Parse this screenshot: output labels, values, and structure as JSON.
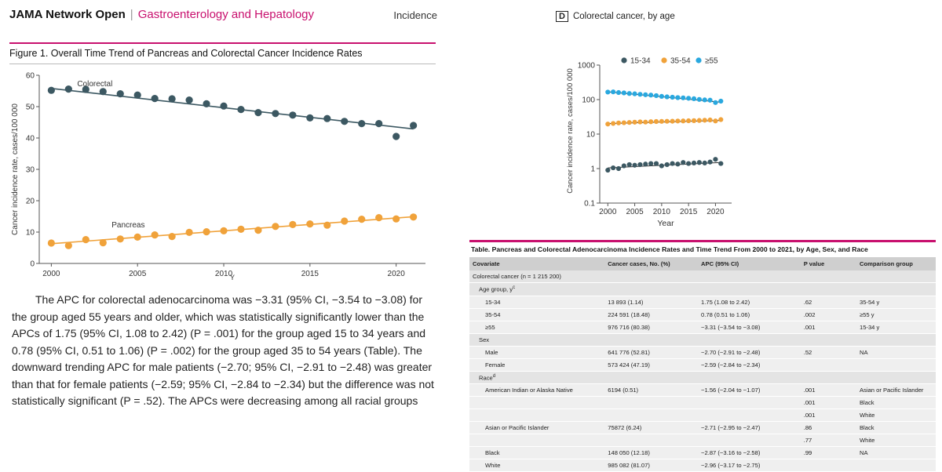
{
  "header": {
    "journal": "JAMA Network Open",
    "separator": "|",
    "section": "Gastroenterology and Hepatology",
    "right_label": "Incidence"
  },
  "figure": {
    "title": "Figure 1. Overall Time Trend of Pancreas and Colorectal Cancer Incidence Rates",
    "panel_letter": "D",
    "panel_title": "Colorectal cancer, by age"
  },
  "body_text": "The APC for colorectal adenocarcinoma was −3.31 (95% CI, −3.54 to −3.08) for the group aged 55 years and older, which was statistically significantly lower than the APCs of 1.75 (95% CI, 1.08 to 2.42) (P = .001) for the group aged 15 to 34 years and 0.78 (95% CI, 0.51 to 1.06) (P = .002) for the group aged 35 to 54 years (Table). The downward trending APC for male patients (−2.70; 95% CI, −2.91 to −2.48) was greater than that for female patients (−2.59; 95% CI, −2.84 to −2.34) but the difference was not statistically significant (P = .52). The APCs were decreasing among all racial groups",
  "chart_data": [
    {
      "type": "scatter",
      "title": "",
      "xlabel": "Y",
      "ylabel": "Cancer incidence rate, cases/100 000",
      "xlim": [
        1999.3,
        2021.7
      ],
      "ylim": [
        0,
        60
      ],
      "x_ticks": [
        "2000",
        "2005",
        "2010",
        "2015",
        "2020"
      ],
      "y_ticks": [
        "0",
        "10",
        "20",
        "30",
        "40",
        "50",
        "60"
      ],
      "grid": false,
      "x": [
        2000,
        2001,
        2002,
        2003,
        2004,
        2005,
        2006,
        2007,
        2008,
        2009,
        2010,
        2011,
        2012,
        2013,
        2014,
        2015,
        2016,
        2017,
        2018,
        2019,
        2020,
        2021
      ],
      "series": [
        {
          "name": "Colorectal",
          "color": "#3c5862",
          "values": [
            55.2,
            55.6,
            55.5,
            54.8,
            54.1,
            53.7,
            52.6,
            52.5,
            52.1,
            50.9,
            50.2,
            49.1,
            48.1,
            47.8,
            47.3,
            46.4,
            46.2,
            45.3,
            44.6,
            44.6,
            40.5,
            44.0
          ],
          "trend": [
            [
              2000,
              55.8
            ],
            [
              2021,
              42.9
            ]
          ]
        },
        {
          "name": "Pancreas",
          "color": "#f0a23a",
          "values": [
            6.5,
            5.7,
            7.6,
            6.6,
            7.8,
            8.4,
            9.1,
            8.6,
            9.9,
            10.1,
            10.4,
            10.9,
            10.6,
            11.8,
            12.4,
            12.6,
            12.2,
            13.5,
            14.1,
            14.6,
            14.2,
            14.8
          ],
          "trend": [
            [
              2000,
              6.3
            ],
            [
              2021,
              14.9
            ]
          ]
        }
      ]
    },
    {
      "type": "scatter",
      "title": "Colorectal cancer, by age",
      "xlabel": "Year",
      "ylabel": "Cancer incidence rate, cases/100 000",
      "yscale": "log",
      "xlim": [
        1998.5,
        2023
      ],
      "ylim": [
        0.1,
        1000
      ],
      "x_ticks": [
        "2000",
        "2005",
        "2010",
        "2015",
        "2020"
      ],
      "y_ticks": [
        "0.1",
        "1",
        "10",
        "100",
        "1000"
      ],
      "legend": "top",
      "grid": false,
      "x": [
        2000,
        2001,
        2002,
        2003,
        2004,
        2005,
        2006,
        2007,
        2008,
        2009,
        2010,
        2011,
        2012,
        2013,
        2014,
        2015,
        2016,
        2017,
        2018,
        2019,
        2020,
        2021
      ],
      "series": [
        {
          "name": "15-34",
          "color": "#3c5862",
          "values": [
            0.9,
            1.05,
            1.0,
            1.2,
            1.3,
            1.25,
            1.3,
            1.35,
            1.4,
            1.4,
            1.2,
            1.3,
            1.4,
            1.35,
            1.5,
            1.4,
            1.45,
            1.5,
            1.45,
            1.55,
            1.85,
            1.4
          ],
          "trend": [
            [
              2000,
              1.05
            ],
            [
              2021,
              1.5
            ]
          ]
        },
        {
          "name": "35-54",
          "color": "#f0a23a",
          "values": [
            19.5,
            20.3,
            21,
            21.3,
            21.7,
            22.1,
            22.5,
            22.3,
            22.8,
            23.1,
            23.3,
            23.5,
            23.6,
            23.9,
            24,
            24.3,
            24.5,
            24.8,
            25.2,
            25.6,
            24,
            26.3
          ],
          "trend": [
            [
              2000,
              20.2
            ],
            [
              2021,
              24.8
            ]
          ]
        },
        {
          "name": "≥55",
          "color": "#29a8df",
          "values": [
            165,
            167,
            160,
            156,
            150,
            147,
            142,
            138,
            135,
            130,
            124,
            120,
            117,
            114,
            112,
            109,
            106,
            101,
            98,
            96,
            82,
            90
          ],
          "trend": [
            [
              2000,
              168
            ],
            [
              2021,
              84
            ]
          ]
        }
      ]
    }
  ],
  "table": {
    "title": "Table. Pancreas and Colorectal Adenocarcinoma Incidence Rates and Time Trend From 2000 to 2021, by Age, Sex, and Race",
    "headers": [
      "Covariate",
      "Cancer cases, No. (%)",
      "APC (95% CI)",
      "P value",
      "Comparison group"
    ],
    "rows": [
      {
        "c": "Colorectal cancer (n = 1 215 200)",
        "cases": "",
        "apc": "",
        "p": "",
        "cmp": "",
        "ind": 0,
        "grp": true
      },
      {
        "c": "Age group, y",
        "sup": "c",
        "cases": "",
        "apc": "",
        "p": "",
        "cmp": "",
        "ind": 1,
        "grp": true
      },
      {
        "c": "15-34",
        "cases": "13 893 (1.14)",
        "apc": "1.75 (1.08 to 2.42)",
        "p": ".62",
        "cmp": "35-54 y",
        "ind": 2
      },
      {
        "c": "35-54",
        "cases": "224 591 (18.48)",
        "apc": "0.78 (0.51 to 1.06)",
        "p": ".002",
        "cmp": "≥55 y",
        "ind": 2
      },
      {
        "c": "≥55",
        "cases": "976 716 (80.38)",
        "apc": "−3.31 (−3.54 to −3.08)",
        "p": ".001",
        "cmp": "15-34 y",
        "ind": 2
      },
      {
        "c": "Sex",
        "cases": "",
        "apc": "",
        "p": "",
        "cmp": "",
        "ind": 1,
        "grp": true
      },
      {
        "c": "Male",
        "cases": "641 776 (52.81)",
        "apc": "−2.70 (−2.91 to −2.48)",
        "p": ".52",
        "cmp": "NA",
        "ind": 2
      },
      {
        "c": "Female",
        "cases": "573 424 (47.19)",
        "apc": "−2.59 (−2.84 to −2.34)",
        "p": "",
        "cmp": "",
        "ind": 2
      },
      {
        "c": "Race",
        "sup": "d",
        "cases": "",
        "apc": "",
        "p": "",
        "cmp": "",
        "ind": 1,
        "grp": true
      },
      {
        "c": "American Indian or Alaska Native",
        "cases": "6194 (0.51)",
        "apc": "−1.56 (−2.04 to −1.07)",
        "p": ".001",
        "cmp": "Asian or Pacific Islander",
        "ind": 2
      },
      {
        "c": "",
        "cases": "",
        "apc": "",
        "p": ".001",
        "cmp": "Black",
        "ind": 2
      },
      {
        "c": "",
        "cases": "",
        "apc": "",
        "p": ".001",
        "cmp": "White",
        "ind": 2
      },
      {
        "c": "Asian or Pacific Islander",
        "cases": "75872 (6.24)",
        "apc": "−2.71 (−2.95 to −2.47)",
        "p": ".86",
        "cmp": "Black",
        "ind": 2
      },
      {
        "c": "",
        "cases": "",
        "apc": "",
        "p": ".77",
        "cmp": "White",
        "ind": 2
      },
      {
        "c": "Black",
        "cases": "148 050 (12.18)",
        "apc": "−2.87 (−3.16 to −2.58)",
        "p": ".99",
        "cmp": "NA",
        "ind": 2
      },
      {
        "c": "White",
        "cases": "985 082 (81.07)",
        "apc": "−2.96 (−3.17 to −2.75)",
        "p": "",
        "cmp": "",
        "ind": 2
      }
    ]
  }
}
